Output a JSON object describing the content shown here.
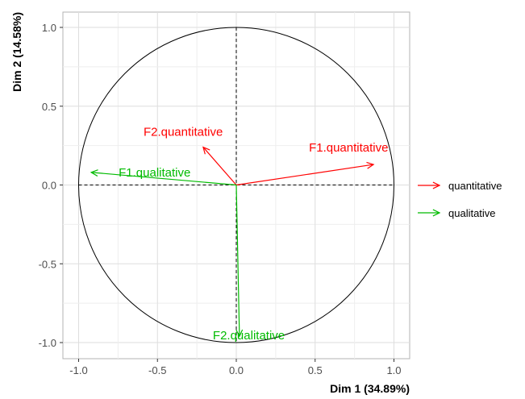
{
  "chart_data": {
    "type": "scatter",
    "subtype": "correlation-circle",
    "xlabel": "Dim 1 (34.89%)",
    "ylabel": "Dim 2 (14.58%)",
    "xlim": [
      -1.0,
      1.0
    ],
    "ylim": [
      -1.0,
      1.0
    ],
    "x_ticks": [
      -1.0,
      -0.5,
      0.0,
      0.5,
      1.0
    ],
    "y_ticks": [
      -1.0,
      -0.5,
      0.0,
      0.5,
      1.0
    ],
    "x_tick_labels": [
      "-1.0",
      "-0.5",
      "0.0",
      "0.5",
      "1.0"
    ],
    "y_tick_labels": [
      "-1.0",
      "-0.5",
      "0.0",
      "0.5",
      "1.0"
    ],
    "grid": true,
    "unit_circle": true,
    "legend_position": "right",
    "series": [
      {
        "name": "quantitative",
        "color": "#ff0000",
        "vectors": [
          {
            "label": "F1.quantitative",
            "x": 0.87,
            "y": 0.13
          },
          {
            "label": "F2.quantitative",
            "x": -0.21,
            "y": 0.24
          }
        ]
      },
      {
        "name": "qualitative",
        "color": "#00bb00",
        "vectors": [
          {
            "label": "F1.qualitative",
            "x": -0.92,
            "y": 0.08
          },
          {
            "label": "F2.qualitative",
            "x": 0.02,
            "y": -0.96
          }
        ]
      }
    ]
  }
}
